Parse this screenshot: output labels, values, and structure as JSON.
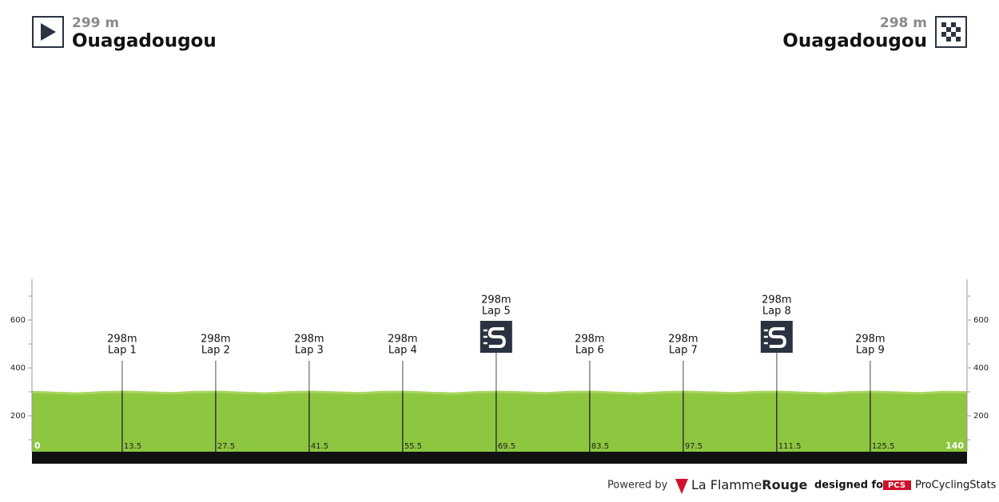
{
  "header": {
    "start": {
      "altitude": "299 m",
      "town": "Ouagadougou"
    },
    "finish": {
      "altitude": "298 m",
      "town": "Ouagadougou"
    }
  },
  "chart_data": {
    "type": "area",
    "xlim": [
      0,
      140
    ],
    "xticks": [
      0,
      140
    ],
    "ylim": [
      0,
      770
    ],
    "yticks": [
      200,
      400,
      600
    ],
    "yticks_minor": [
      100,
      300,
      500,
      700
    ],
    "color": "#8dc63f",
    "line_color": "#a8d65e",
    "profile": {
      "x": [
        0,
        3.5,
        7,
        10.5,
        14,
        17.5,
        21,
        24.5,
        28,
        31.5,
        35,
        38.5,
        42,
        45.5,
        49,
        52.5,
        56,
        59.5,
        63,
        66.5,
        70,
        73.5,
        77,
        80.5,
        84,
        87.5,
        91,
        94.5,
        98,
        101.5,
        105,
        108.5,
        112,
        115.5,
        119,
        122.5,
        126,
        129.5,
        133,
        136.5,
        140
      ],
      "elevation": [
        299,
        296,
        293,
        298,
        300,
        297,
        294,
        299,
        300,
        296,
        293,
        298,
        300,
        297,
        294,
        299,
        300,
        296,
        293,
        298,
        300,
        297,
        294,
        299,
        300,
        296,
        293,
        298,
        300,
        297,
        294,
        299,
        300,
        296,
        293,
        298,
        300,
        297,
        294,
        299,
        298
      ]
    },
    "markers": [
      {
        "km": 13.5,
        "elevation_label": "298m",
        "label": "Lap 1",
        "sprint": false
      },
      {
        "km": 27.5,
        "elevation_label": "298m",
        "label": "Lap 2",
        "sprint": false
      },
      {
        "km": 41.5,
        "elevation_label": "298m",
        "label": "Lap 3",
        "sprint": false
      },
      {
        "km": 55.5,
        "elevation_label": "298m",
        "label": "Lap 4",
        "sprint": false
      },
      {
        "km": 69.5,
        "elevation_label": "298m",
        "label": "Lap 5",
        "sprint": true
      },
      {
        "km": 83.5,
        "elevation_label": "298m",
        "label": "Lap 6",
        "sprint": false
      },
      {
        "km": 97.5,
        "elevation_label": "298m",
        "label": "Lap 7",
        "sprint": false
      },
      {
        "km": 111.5,
        "elevation_label": "298m",
        "label": "Lap 8",
        "sprint": true
      },
      {
        "km": 125.5,
        "elevation_label": "298m",
        "label": "Lap 9",
        "sprint": false
      }
    ]
  },
  "footer": {
    "powered": "Powered by",
    "brand_a": "La Flamme",
    "brand_b": "Rouge",
    "designed": "designed for",
    "pcs": "PCS",
    "site": "ProCyclingStats"
  }
}
